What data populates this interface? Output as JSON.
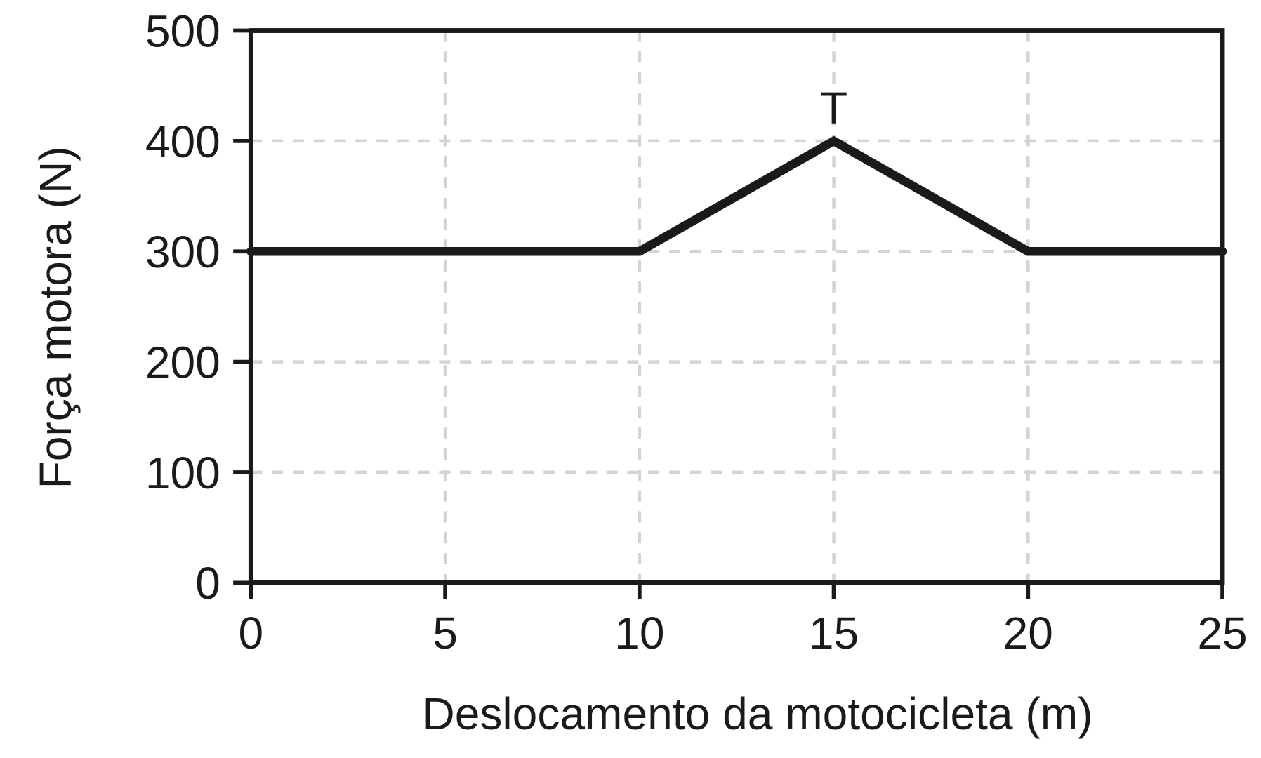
{
  "chart_data": {
    "type": "line",
    "title": "",
    "xlabel": "Deslocamento da motocicleta (m)",
    "ylabel": "Força motora (N)",
    "xlim": [
      0,
      25
    ],
    "ylim": [
      0,
      500
    ],
    "xticks": [
      0,
      5,
      10,
      15,
      20,
      25
    ],
    "yticks": [
      0,
      100,
      200,
      300,
      400,
      500
    ],
    "grid": true,
    "series": [
      {
        "x": [
          0,
          10,
          15,
          20,
          25
        ],
        "y": [
          300,
          300,
          400,
          300,
          300
        ],
        "color": "#1a1a1a"
      }
    ],
    "annotations": [
      {
        "text": "T",
        "x": 15,
        "y": 400
      }
    ],
    "colors": {
      "line": "#1a1a1a",
      "grid": "#d4d4d4",
      "axis": "#1a1a1a"
    }
  }
}
